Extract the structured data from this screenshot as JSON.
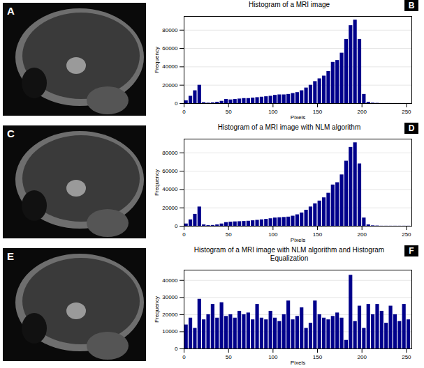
{
  "images": [
    {
      "panel": "A"
    },
    {
      "panel": "C"
    },
    {
      "panel": "E"
    }
  ],
  "chart_data": [
    {
      "type": "histogram",
      "panel": "B",
      "title": "Histogram of a MRI image",
      "x_label": "Pixels",
      "y_label": "Frequency",
      "color": "#00008b",
      "bins": [
        0,
        5,
        10,
        15,
        20,
        25,
        30,
        35,
        40,
        45,
        50,
        55,
        60,
        65,
        70,
        75,
        80,
        85,
        90,
        95,
        100,
        105,
        110,
        115,
        120,
        125,
        130,
        135,
        140,
        145,
        150,
        155,
        160,
        165,
        170,
        175,
        180,
        185,
        190,
        195,
        200,
        205,
        210,
        215,
        220,
        225,
        230,
        235,
        240,
        245,
        250,
        255
      ],
      "counts": [
        3000,
        8000,
        14000,
        20000,
        1000,
        500,
        800,
        1500,
        2500,
        4500,
        4000,
        4500,
        5000,
        5500,
        5500,
        6000,
        6500,
        7000,
        7500,
        8000,
        9000,
        9500,
        9500,
        10000,
        11000,
        12000,
        14000,
        17000,
        20000,
        24000,
        27000,
        30000,
        35000,
        45000,
        47000,
        55000,
        70000,
        85000,
        91000,
        70000,
        10000,
        1500,
        500,
        300,
        100,
        100,
        100,
        100,
        100,
        100,
        100
      ],
      "xlim": [
        0,
        256
      ],
      "xticks": [
        0,
        50,
        100,
        150,
        200,
        250
      ],
      "ylim": [
        0,
        95000
      ],
      "yticks": [
        0,
        20000,
        40000,
        60000,
        80000
      ],
      "grid": true
    },
    {
      "type": "histogram",
      "panel": "D",
      "title": "Histogram of a MRI image with NLM algorithm",
      "x_label": "Pixels",
      "y_label": "Frequency",
      "color": "#00008b",
      "bins": [
        0,
        5,
        10,
        15,
        20,
        25,
        30,
        35,
        40,
        45,
        50,
        55,
        60,
        65,
        70,
        75,
        80,
        85,
        90,
        95,
        100,
        105,
        110,
        115,
        120,
        125,
        130,
        135,
        140,
        145,
        150,
        155,
        160,
        165,
        170,
        175,
        180,
        185,
        190,
        195,
        200,
        205,
        210,
        215,
        220,
        225,
        230,
        235,
        240,
        245,
        250,
        255
      ],
      "counts": [
        2500,
        7000,
        13000,
        21000,
        1500,
        700,
        900,
        1500,
        2500,
        4000,
        4500,
        4800,
        5000,
        5200,
        5500,
        6000,
        6500,
        7000,
        7500,
        8200,
        9000,
        9300,
        9600,
        10000,
        11000,
        12500,
        14500,
        17500,
        21000,
        24500,
        27500,
        31000,
        36000,
        45000,
        47500,
        56000,
        71000,
        86000,
        91000,
        68000,
        9000,
        1500,
        500,
        300,
        100,
        100,
        100,
        100,
        100,
        100,
        100
      ],
      "xlim": [
        0,
        256
      ],
      "xticks": [
        0,
        50,
        100,
        150,
        200,
        250
      ],
      "ylim": [
        0,
        95000
      ],
      "yticks": [
        0,
        20000,
        40000,
        60000,
        80000
      ],
      "grid": true
    },
    {
      "type": "histogram",
      "panel": "F",
      "title": "Histogram of a MRI image with NLM algorithm and Histogram Equalization",
      "x_label": "Pixels",
      "y_label": "Frequency",
      "color": "#00008b",
      "bins": [
        0,
        5,
        10,
        15,
        20,
        25,
        30,
        35,
        40,
        45,
        50,
        55,
        60,
        65,
        70,
        75,
        80,
        85,
        90,
        95,
        100,
        105,
        110,
        115,
        120,
        125,
        130,
        135,
        140,
        145,
        150,
        155,
        160,
        165,
        170,
        175,
        180,
        185,
        190,
        195,
        200,
        205,
        210,
        215,
        220,
        225,
        230,
        235,
        240,
        245,
        250,
        255
      ],
      "counts": [
        14000,
        18000,
        12000,
        29000,
        17000,
        20000,
        26000,
        18000,
        27000,
        19000,
        20000,
        18000,
        22000,
        20000,
        21000,
        17000,
        26000,
        18000,
        17000,
        22000,
        18000,
        16000,
        20000,
        28000,
        17000,
        19000,
        24000,
        12000,
        15000,
        28000,
        20000,
        18000,
        17000,
        19000,
        21000,
        18000,
        5000,
        43000,
        16000,
        25000,
        12000,
        26000,
        20000,
        26000,
        22000,
        15000,
        25000,
        20000,
        16000,
        26000,
        17000
      ],
      "xlim": [
        0,
        256
      ],
      "xticks": [
        0,
        50,
        100,
        150,
        200,
        250
      ],
      "ylim": [
        0,
        46000
      ],
      "yticks": [
        0,
        10000,
        20000,
        30000,
        40000
      ],
      "grid": true
    }
  ]
}
